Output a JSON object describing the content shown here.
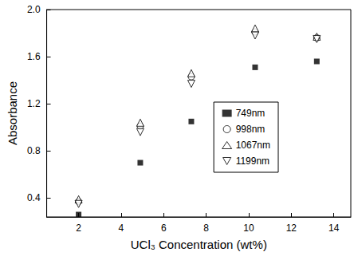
{
  "chart_data": {
    "type": "scatter",
    "x_label": "UCl₃ Concentration (wt%)",
    "y_label": "Absorbance",
    "xlim": [
      0.5,
      14.8
    ],
    "xticks": [
      2,
      4,
      6,
      8,
      10,
      12,
      14
    ],
    "ylim": [
      0.24,
      2.0
    ],
    "yticks": [
      0.4,
      0.8,
      1.2,
      1.6,
      {
        "value": 2,
        "label": "2.0"
      }
    ],
    "grid": false,
    "legend": "right",
    "series": [
      {
        "name": "749nm",
        "color": "#000000",
        "marker": "square",
        "x": [
          2,
          4.9,
          7.3,
          10.3,
          13.2
        ],
        "values": [
          0.26,
          0.7,
          1.05,
          1.51,
          1.56
        ]
      },
      {
        "name": "998nm",
        "color": "#000000",
        "marker": "circle-open",
        "x": [
          2,
          4.9,
          7.3,
          10.3,
          13.2
        ],
        "values": [
          0.37,
          1.01,
          1.43,
          1.81,
          1.76
        ]
      },
      {
        "name": "1067nm",
        "color": "#000000",
        "marker": "triangle-up-open",
        "x": [
          2,
          4.9,
          7.3,
          10.3,
          13.2
        ],
        "values": [
          0.39,
          1.04,
          1.46,
          1.84,
          1.77
        ]
      },
      {
        "name": "1199nm",
        "color": "#000000",
        "marker": "triangle-down-open",
        "x": [
          2,
          4.9,
          7.3,
          10.3,
          13.2
        ],
        "values": [
          0.35,
          0.96,
          1.37,
          1.78,
          1.75
        ]
      }
    ]
  }
}
